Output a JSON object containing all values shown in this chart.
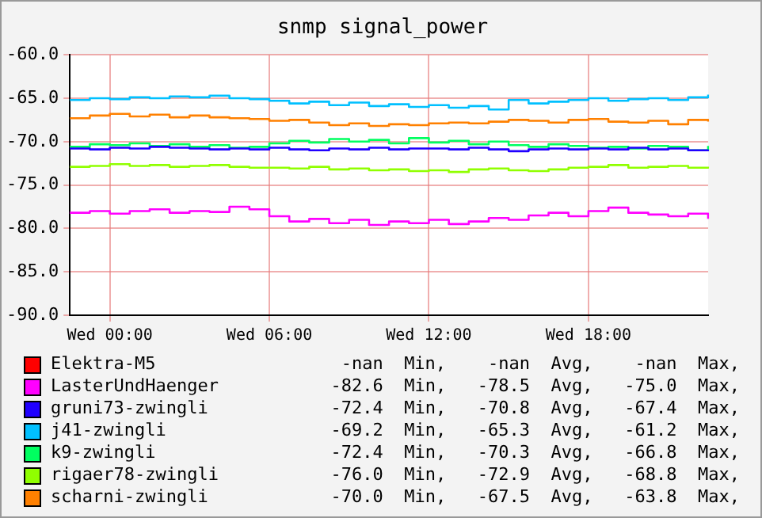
{
  "chart_data": {
    "type": "step",
    "title": "snmp signal_power",
    "categories": [
      null,
      null,
      "Wed 00:00",
      null,
      null,
      null,
      null,
      null,
      null,
      null,
      "Wed 06:00",
      null,
      null,
      null,
      null,
      null,
      null,
      null,
      "Wed 12:00",
      null,
      null,
      null,
      null,
      null,
      null,
      null,
      "Wed 18:00",
      null,
      null,
      null,
      null,
      null,
      null
    ],
    "series": [
      {
        "name": "Elektra-M5",
        "color": "#ff0000",
        "values": [
          null,
          null,
          null,
          null,
          null,
          null,
          null,
          null,
          null,
          null,
          null,
          null,
          null,
          null,
          null,
          null,
          null,
          null,
          null,
          null,
          null,
          null,
          null,
          null,
          null,
          null,
          null,
          null,
          null,
          null,
          null,
          null,
          null
        ]
      },
      {
        "name": "LasterUndHaenger",
        "color": "#ff00ff",
        "values": [
          -78.2,
          -78.0,
          -78.3,
          -78.0,
          -77.8,
          -78.2,
          -78.0,
          -78.1,
          -77.5,
          -77.8,
          -78.6,
          -79.2,
          -78.9,
          -79.4,
          -79.0,
          -79.6,
          -79.2,
          -79.4,
          -79.0,
          -79.5,
          -79.2,
          -78.8,
          -79.0,
          -78.5,
          -78.2,
          -78.6,
          -78.0,
          -77.6,
          -78.2,
          -78.4,
          -78.6,
          -78.3,
          -78.9
        ]
      },
      {
        "name": "gruni73-zwingli",
        "color": "#2000ff",
        "values": [
          -70.8,
          -70.9,
          -70.7,
          -70.8,
          -70.6,
          -70.7,
          -70.8,
          -70.9,
          -70.8,
          -70.9,
          -70.7,
          -70.9,
          -71.0,
          -70.8,
          -70.9,
          -70.7,
          -70.9,
          -70.8,
          -70.8,
          -70.9,
          -70.7,
          -70.9,
          -71.1,
          -70.9,
          -70.8,
          -70.9,
          -70.8,
          -70.9,
          -70.7,
          -70.9,
          -70.8,
          -71.0,
          -70.9
        ]
      },
      {
        "name": "j41-zwingli",
        "color": "#00c0ff",
        "values": [
          -65.2,
          -65.0,
          -65.1,
          -64.9,
          -65.0,
          -64.8,
          -64.9,
          -64.7,
          -65.0,
          -65.1,
          -65.3,
          -65.6,
          -65.4,
          -65.8,
          -65.5,
          -65.9,
          -65.7,
          -66.0,
          -65.8,
          -66.1,
          -65.9,
          -66.3,
          -65.2,
          -65.6,
          -65.4,
          -65.2,
          -65.0,
          -65.3,
          -65.1,
          -65.0,
          -65.2,
          -64.9,
          -64.6
        ]
      },
      {
        "name": "k9-zwingli",
        "color": "#00ff60",
        "values": [
          -70.6,
          -70.3,
          -70.4,
          -70.2,
          -70.5,
          -70.3,
          -70.6,
          -70.4,
          -70.7,
          -70.6,
          -70.2,
          -69.9,
          -70.1,
          -69.7,
          -70.0,
          -69.8,
          -70.2,
          -69.6,
          -70.1,
          -69.9,
          -70.3,
          -70.0,
          -70.4,
          -70.6,
          -70.3,
          -70.5,
          -70.7,
          -70.6,
          -70.8,
          -70.5,
          -70.6,
          -71.0,
          -70.5
        ]
      },
      {
        "name": "rigaer78-zwingli",
        "color": "#90ff00",
        "values": [
          -72.9,
          -72.8,
          -72.6,
          -72.8,
          -72.7,
          -72.9,
          -72.8,
          -72.7,
          -72.9,
          -73.0,
          -73.0,
          -73.1,
          -72.9,
          -73.2,
          -73.1,
          -73.3,
          -73.2,
          -73.4,
          -73.3,
          -73.5,
          -73.2,
          -73.1,
          -73.3,
          -73.4,
          -73.2,
          -73.0,
          -72.9,
          -72.7,
          -73.0,
          -72.9,
          -72.8,
          -73.0,
          -72.9
        ]
      },
      {
        "name": "scharni-zwingli",
        "color": "#ff8000",
        "values": [
          -67.3,
          -67.0,
          -66.8,
          -67.1,
          -66.9,
          -67.2,
          -67.0,
          -67.2,
          -67.3,
          -67.4,
          -67.6,
          -67.5,
          -67.8,
          -68.1,
          -67.9,
          -68.2,
          -68.0,
          -68.1,
          -67.9,
          -67.8,
          -67.9,
          -67.7,
          -67.5,
          -67.6,
          -67.8,
          -67.5,
          -67.4,
          -67.7,
          -67.8,
          -67.6,
          -68.0,
          -67.5,
          -67.7
        ]
      }
    ],
    "ylim": [
      -90,
      -60
    ],
    "yticks": [
      {
        "value": -90,
        "label": "-90.0"
      },
      {
        "value": -85,
        "label": "-85.0"
      },
      {
        "value": -80,
        "label": "-80.0"
      },
      {
        "value": -75,
        "label": "-75.0"
      },
      {
        "value": -70,
        "label": "-70.0"
      },
      {
        "value": -65,
        "label": "-65.0"
      },
      {
        "value": -60,
        "label": "-60.0"
      }
    ],
    "grid": true,
    "legend": "bottom",
    "annotations": [
      "-nan  Min,    -nan  Avg,    -nan  Max,",
      "-82.6  Min,   -78.5  Avg,   -75.0  Max,",
      "-72.4  Min,   -70.8  Avg,   -67.4  Max,",
      "-69.2  Min,   -65.3  Avg,   -61.2  Max,",
      "-72.4  Min,   -70.3  Avg,   -66.8  Max,",
      "-76.0  Min,   -72.9  Avg,   -68.8  Max,",
      "-70.0  Min,   -67.5  Avg,   -63.8  Max,"
    ]
  }
}
